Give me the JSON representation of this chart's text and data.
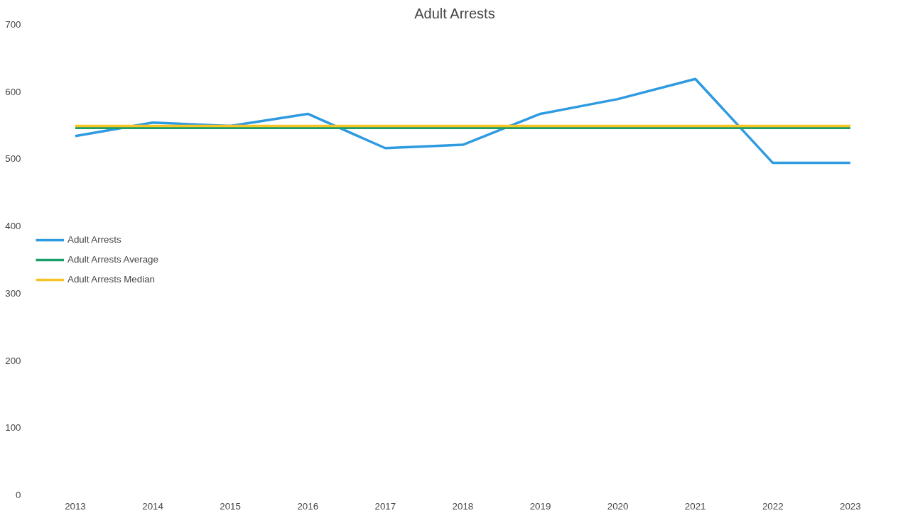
{
  "chart_data": {
    "type": "line",
    "title": "Adult Arrests",
    "categories": [
      "2013",
      "2014",
      "2015",
      "2016",
      "2017",
      "2018",
      "2019",
      "2020",
      "2021",
      "2022",
      "2023"
    ],
    "series": [
      {
        "name": "Adult Arrests",
        "color": "#2e9ae0",
        "values": [
          534,
          554,
          549,
          567,
          516,
          521,
          567,
          589,
          619,
          494,
          494
        ]
      },
      {
        "name": "Adult Arrests Average",
        "color": "#1a9e6a",
        "values": [
          546,
          546,
          546,
          546,
          546,
          546,
          546,
          546,
          546,
          546,
          546
        ]
      },
      {
        "name": "Adult Arrests Median",
        "color": "#f7c325",
        "values": [
          549,
          549,
          549,
          549,
          549,
          549,
          549,
          549,
          549,
          549,
          549
        ]
      }
    ],
    "ylim": [
      0,
      700
    ],
    "yticks": [
      0,
      100,
      200,
      300,
      400,
      500,
      600,
      700
    ],
    "grid": false,
    "legend": "left",
    "marker": "none",
    "line_style": "solid"
  }
}
